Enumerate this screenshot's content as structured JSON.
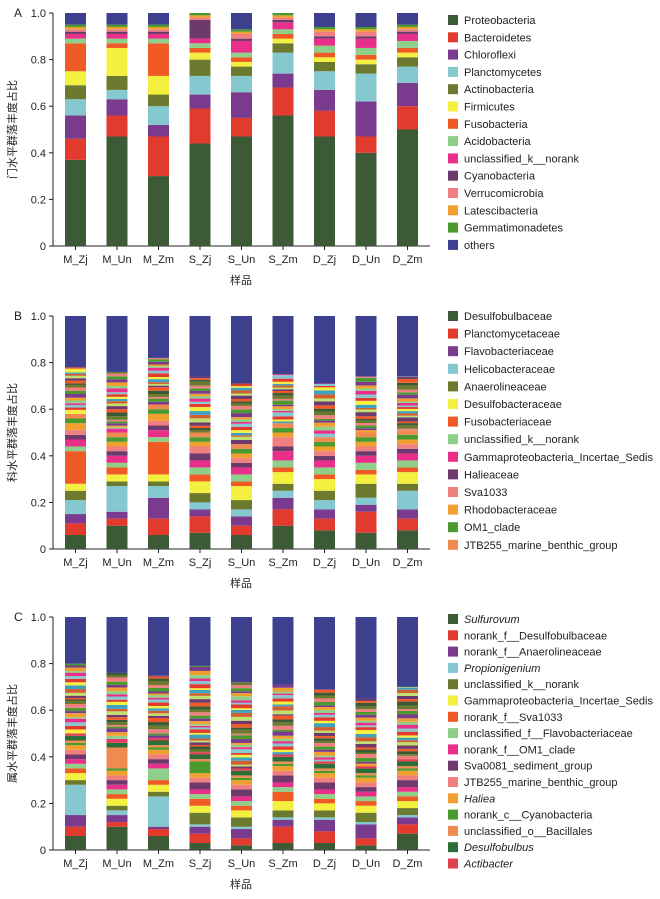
{
  "chart_data": [
    {
      "type": "bar",
      "stacked": true,
      "panel_label": "A",
      "ylabel": "门水平群落丰度占比",
      "xlabel": "样品",
      "ylim": [
        0,
        1.0
      ],
      "yticks": [
        "0",
        "0.2",
        "0.4",
        "0.6",
        "0.8",
        "1.0"
      ],
      "categories": [
        "M_Zj",
        "M_Un",
        "M_Zm",
        "S_Zj",
        "S_Un",
        "S_Zm",
        "D_Zj",
        "D_Un",
        "D_Zm"
      ],
      "others_label": "others",
      "others_color": "#3d3f8f",
      "series": [
        {
          "name": "Proteobacteria",
          "color": "#3c5a36",
          "values": [
            0.37,
            0.47,
            0.3,
            0.44,
            0.47,
            0.56,
            0.47,
            0.4,
            0.5
          ]
        },
        {
          "name": "Bacteroidetes",
          "color": "#e33a2e",
          "values": [
            0.09,
            0.09,
            0.17,
            0.15,
            0.08,
            0.12,
            0.11,
            0.07,
            0.1
          ]
        },
        {
          "name": "Chloroflexi",
          "color": "#7a3a8e",
          "values": [
            0.1,
            0.07,
            0.05,
            0.06,
            0.11,
            0.06,
            0.09,
            0.15,
            0.1
          ]
        },
        {
          "name": "Planctomycetes",
          "color": "#86c8d0",
          "values": [
            0.07,
            0.04,
            0.08,
            0.08,
            0.07,
            0.09,
            0.08,
            0.12,
            0.07
          ]
        },
        {
          "name": "Actinobacteria",
          "color": "#6b7a2e",
          "values": [
            0.06,
            0.06,
            0.05,
            0.07,
            0.04,
            0.04,
            0.04,
            0.04,
            0.04
          ]
        },
        {
          "name": "Firmicutes",
          "color": "#f4f040",
          "values": [
            0.06,
            0.12,
            0.08,
            0.03,
            0.02,
            0.02,
            0.02,
            0.02,
            0.02
          ]
        },
        {
          "name": "Fusobacteria",
          "color": "#f05a24",
          "values": [
            0.12,
            0.02,
            0.14,
            0.02,
            0.02,
            0.02,
            0.02,
            0.02,
            0.02
          ]
        },
        {
          "name": "Acidobacteria",
          "color": "#8ed08a",
          "values": [
            0.02,
            0.02,
            0.02,
            0.02,
            0.02,
            0.02,
            0.03,
            0.03,
            0.03
          ]
        },
        {
          "name": "unclassified_k__norank",
          "color": "#e8308a",
          "values": [
            0.02,
            0.02,
            0.02,
            0.02,
            0.05,
            0.03,
            0.03,
            0.04,
            0.03
          ]
        },
        {
          "name": "Cyanobacteria",
          "color": "#6e3a6e",
          "values": [
            0.01,
            0.01,
            0.01,
            0.08,
            0.01,
            0.01,
            0.01,
            0.01,
            0.01
          ]
        },
        {
          "name": "Verrucomicrobia",
          "color": "#f08080",
          "values": [
            0.01,
            0.01,
            0.01,
            0.01,
            0.02,
            0.01,
            0.02,
            0.02,
            0.01
          ]
        },
        {
          "name": "Latescibacteria",
          "color": "#f0a030",
          "values": [
            0.01,
            0.01,
            0.01,
            0.01,
            0.01,
            0.01,
            0.01,
            0.01,
            0.01
          ]
        },
        {
          "name": "Gemmatimonadetes",
          "color": "#4a9a30",
          "values": [
            0.01,
            0.01,
            0.01,
            0.01,
            0.01,
            0.01,
            0.01,
            0.01,
            0.01
          ]
        }
      ]
    },
    {
      "type": "bar",
      "stacked": true,
      "panel_label": "B",
      "ylabel": "科水平群落丰度占比",
      "xlabel": "样品",
      "ylim": [
        0,
        1.0
      ],
      "yticks": [
        "0",
        "0.2",
        "0.4",
        "0.6",
        "0.8",
        "1.0"
      ],
      "categories": [
        "M_Zj",
        "M_Un",
        "M_Zm",
        "S_Zj",
        "S_Un",
        "S_Zm",
        "D_Zj",
        "D_Un",
        "D_Zm"
      ],
      "others_color": "#3d3f8f",
      "series": [
        {
          "name": "Desulfobulbaceae",
          "color": "#3c5a36",
          "values": [
            0.06,
            0.1,
            0.06,
            0.07,
            0.06,
            0.1,
            0.08,
            0.07,
            0.08
          ]
        },
        {
          "name": "Planctomycetaceae",
          "color": "#e33a2e",
          "values": [
            0.05,
            0.03,
            0.07,
            0.07,
            0.04,
            0.07,
            0.05,
            0.09,
            0.05
          ]
        },
        {
          "name": "Flavobacteriaceae",
          "color": "#7a3a8e",
          "values": [
            0.04,
            0.03,
            0.09,
            0.03,
            0.04,
            0.05,
            0.04,
            0.03,
            0.04
          ]
        },
        {
          "name": "Helicobacteraceae",
          "color": "#86c8d0",
          "values": [
            0.06,
            0.11,
            0.05,
            0.03,
            0.03,
            0.03,
            0.04,
            0.03,
            0.08
          ]
        },
        {
          "name": "Anaerolineaceae",
          "color": "#6b7a2e",
          "values": [
            0.04,
            0.02,
            0.02,
            0.04,
            0.04,
            0.03,
            0.04,
            0.06,
            0.03
          ]
        },
        {
          "name": "Desulfobacteraceae",
          "color": "#f4f040",
          "values": [
            0.03,
            0.03,
            0.03,
            0.05,
            0.06,
            0.05,
            0.05,
            0.04,
            0.05
          ]
        },
        {
          "name": "Fusobacteriaceae",
          "color": "#f05a24",
          "values": [
            0.14,
            0.03,
            0.14,
            0.03,
            0.02,
            0.02,
            0.02,
            0.02,
            0.02
          ]
        },
        {
          "name": "unclassified_k__norank",
          "color": "#8ed08a",
          "values": [
            0.02,
            0.02,
            0.02,
            0.03,
            0.03,
            0.03,
            0.03,
            0.03,
            0.03
          ]
        },
        {
          "name": "Gammaproteobacteria_Incertae_Sedis",
          "color": "#e8308a",
          "values": [
            0.03,
            0.03,
            0.03,
            0.03,
            0.03,
            0.04,
            0.03,
            0.03,
            0.03
          ]
        },
        {
          "name": "Halieaceae",
          "color": "#6e3a6e",
          "values": [
            0.02,
            0.02,
            0.02,
            0.03,
            0.02,
            0.02,
            0.02,
            0.02,
            0.02
          ]
        },
        {
          "name": "Sva1033",
          "color": "#f08080",
          "values": [
            0.02,
            0.02,
            0.02,
            0.03,
            0.02,
            0.04,
            0.02,
            0.02,
            0.02
          ]
        },
        {
          "name": "Rhodobacteraceae",
          "color": "#f0a030",
          "values": [
            0.03,
            0.02,
            0.03,
            0.02,
            0.02,
            0.02,
            0.02,
            0.02,
            0.02
          ]
        },
        {
          "name": "OM1_clade",
          "color": "#4a9a30",
          "values": [
            0.02,
            0.02,
            0.02,
            0.02,
            0.02,
            0.02,
            0.02,
            0.02,
            0.02
          ]
        },
        {
          "name": "JTB255_marine_benthic_group",
          "color": "#f08a50",
          "values": [
            0.02,
            0.02,
            0.02,
            0.02,
            0.02,
            0.02,
            0.02,
            0.02,
            0.02
          ]
        }
      ],
      "others_values": [
        0.22,
        0.24,
        0.18,
        0.26,
        0.29,
        0.25,
        0.29,
        0.26,
        0.26
      ]
    },
    {
      "type": "bar",
      "stacked": true,
      "panel_label": "C",
      "ylabel": "属水平群落丰度占比",
      "xlabel": "样品",
      "ylim": [
        0,
        1.0
      ],
      "yticks": [
        "0",
        "0.2",
        "0.4",
        "0.6",
        "0.8",
        "1.0"
      ],
      "categories": [
        "M_Zj",
        "M_Un",
        "M_Zm",
        "S_Zj",
        "S_Un",
        "S_Zm",
        "D_Zj",
        "D_Un",
        "D_Zm"
      ],
      "others_color": "#3d3f8f",
      "series": [
        {
          "name": "Sulfurovum",
          "italic": true,
          "color": "#3c5a36",
          "values": [
            0.06,
            0.1,
            0.06,
            0.03,
            0.02,
            0.03,
            0.03,
            0.02,
            0.07
          ]
        },
        {
          "name": "norank_f__Desulfobulbaceae",
          "color": "#e33a2e",
          "values": [
            0.04,
            0.02,
            0.03,
            0.04,
            0.03,
            0.07,
            0.05,
            0.03,
            0.04
          ]
        },
        {
          "name": "norank_f__Anaerolineaceae",
          "color": "#7a3a8e",
          "values": [
            0.05,
            0.03,
            0.01,
            0.03,
            0.04,
            0.03,
            0.05,
            0.06,
            0.03
          ]
        },
        {
          "name": "Propionigenium",
          "italic": true,
          "color": "#86c8d0",
          "values": [
            0.13,
            0.02,
            0.13,
            0.01,
            0.01,
            0.01,
            0.01,
            0.01,
            0.01
          ]
        },
        {
          "name": "unclassified_k__norank",
          "color": "#6b7a2e",
          "values": [
            0.02,
            0.02,
            0.02,
            0.05,
            0.04,
            0.03,
            0.03,
            0.04,
            0.03
          ]
        },
        {
          "name": "Gammaproteobacteria_Incertae_Sedis",
          "color": "#f4f040",
          "values": [
            0.03,
            0.03,
            0.03,
            0.03,
            0.03,
            0.04,
            0.03,
            0.03,
            0.03
          ]
        },
        {
          "name": "norank_f__Sva1033",
          "color": "#f05a24",
          "values": [
            0.02,
            0.02,
            0.02,
            0.03,
            0.02,
            0.04,
            0.02,
            0.02,
            0.02
          ]
        },
        {
          "name": "unclassified_f__Flavobacteriaceae",
          "color": "#8ed08a",
          "values": [
            0.02,
            0.02,
            0.05,
            0.02,
            0.02,
            0.02,
            0.02,
            0.02,
            0.02
          ]
        },
        {
          "name": "norank_f__OM1_clade",
          "color": "#e8308a",
          "values": [
            0.02,
            0.02,
            0.02,
            0.02,
            0.02,
            0.02,
            0.02,
            0.02,
            0.02
          ]
        },
        {
          "name": "Sva0081_sediment_group",
          "color": "#6e3a6e",
          "values": [
            0.02,
            0.02,
            0.02,
            0.03,
            0.03,
            0.03,
            0.03,
            0.02,
            0.03
          ]
        },
        {
          "name": "JTB255_marine_benthic_group",
          "color": "#f08080",
          "values": [
            0.02,
            0.02,
            0.02,
            0.02,
            0.02,
            0.02,
            0.02,
            0.02,
            0.02
          ]
        },
        {
          "name": "Haliea",
          "italic": true,
          "color": "#f0a030",
          "values": [
            0.02,
            0.02,
            0.02,
            0.02,
            0.02,
            0.02,
            0.02,
            0.02,
            0.02
          ]
        },
        {
          "name": "norank_c__Cyanobacteria",
          "color": "#4a9a30",
          "values": [
            0.01,
            0.01,
            0.01,
            0.05,
            0.01,
            0.01,
            0.01,
            0.01,
            0.01
          ]
        },
        {
          "name": "unclassified_o__Bacillales",
          "color": "#f08a50",
          "values": [
            0.01,
            0.09,
            0.01,
            0.01,
            0.01,
            0.01,
            0.01,
            0.01,
            0.01
          ]
        },
        {
          "name": "Desulfobulbus",
          "italic": true,
          "color": "#2e6e3a",
          "values": [
            0.02,
            0.02,
            0.02,
            0.02,
            0.02,
            0.02,
            0.02,
            0.02,
            0.02
          ]
        },
        {
          "name": "Actibacter",
          "italic": true,
          "color": "#e04050",
          "values": [
            0.01,
            0.01,
            0.01,
            0.01,
            0.01,
            0.01,
            0.01,
            0.01,
            0.01
          ]
        }
      ],
      "others_values": [
        0.2,
        0.24,
        0.25,
        0.21,
        0.28,
        0.29,
        0.31,
        0.35,
        0.3
      ]
    }
  ],
  "filler_palette": [
    "#f4f040",
    "#e33a2e",
    "#86c8d0",
    "#e8308a",
    "#8ed08a",
    "#f0a030",
    "#7a3a8e",
    "#4a9a30",
    "#f08080",
    "#6b7a2e",
    "#3c5a36",
    "#f05a24",
    "#6e3a6e",
    "#c0e070",
    "#d06030",
    "#40a0c0"
  ]
}
